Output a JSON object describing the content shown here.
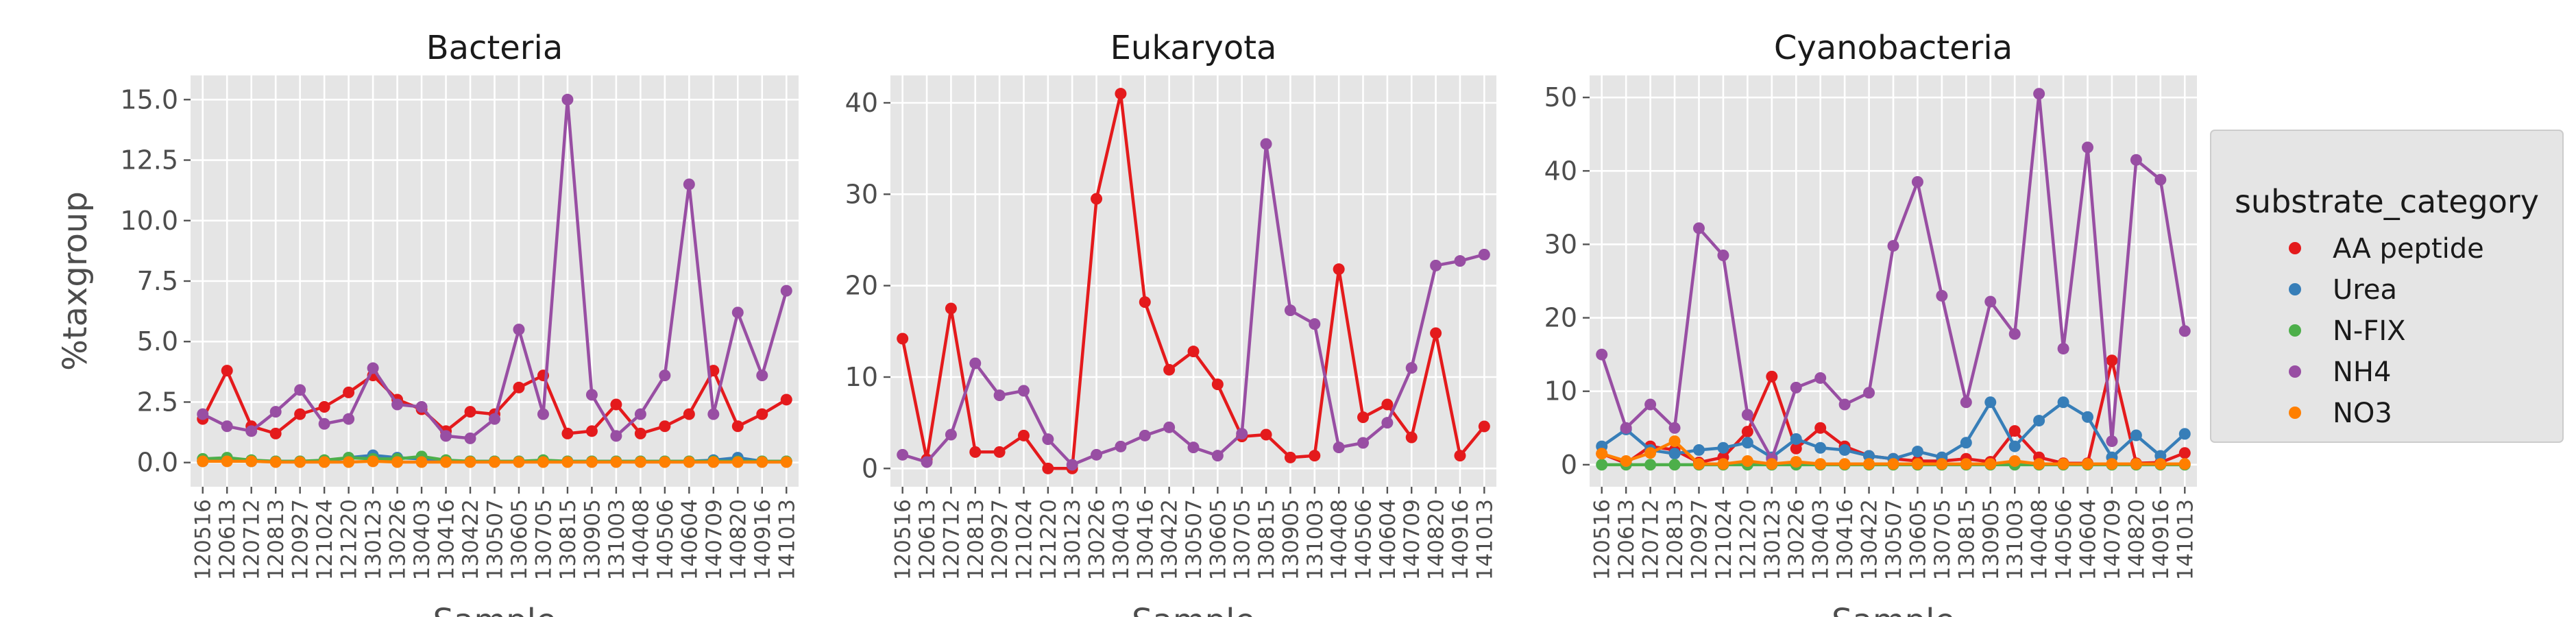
{
  "chart_data": {
    "type": "line",
    "legend": {
      "title": "substrate_category",
      "placement": "right",
      "entries": [
        {
          "name": "AA peptide",
          "color": "#e41a1c"
        },
        {
          "name": "Urea",
          "color": "#377eb8"
        },
        {
          "name": "N-FIX",
          "color": "#4daf4a"
        },
        {
          "name": "NH4",
          "color": "#984ea3"
        },
        {
          "name": "NO3",
          "color": "#ff7f00"
        }
      ]
    },
    "panels": [
      {
        "title": "Bacteria",
        "xlabel": "Sample",
        "ylabel": "%taxgroup",
        "ylim": [
          -1,
          16
        ],
        "yticks": [
          0.0,
          2.5,
          5.0,
          7.5,
          10.0,
          12.5,
          15.0
        ],
        "ytick_labels": [
          "0.0",
          "2.5",
          "5.0",
          "7.5",
          "10.0",
          "12.5",
          "15.0"
        ],
        "x": [
          "120516",
          "120613",
          "120712",
          "120813",
          "120927",
          "121024",
          "121220",
          "130123",
          "130226",
          "130403",
          "130416",
          "130422",
          "130507",
          "130605",
          "130705",
          "130815",
          "130905",
          "131003",
          "140408",
          "140506",
          "140604",
          "140709",
          "140820",
          "140916",
          "141013"
        ],
        "series": [
          {
            "name": "AA peptide",
            "color": "#e41a1c",
            "values": [
              1.8,
              3.8,
              1.5,
              1.2,
              2.0,
              2.3,
              2.9,
              3.6,
              2.6,
              2.2,
              1.3,
              2.1,
              2.0,
              3.1,
              3.6,
              1.2,
              1.3,
              2.4,
              1.2,
              1.5,
              2.0,
              3.8,
              1.5,
              2.0,
              2.6
            ]
          },
          {
            "name": "Urea",
            "color": "#377eb8",
            "values": [
              0.05,
              0.1,
              0.05,
              0.05,
              0.05,
              0.05,
              0.2,
              0.3,
              0.2,
              0.15,
              0.05,
              0.05,
              0.05,
              0.05,
              0.05,
              0.05,
              0.05,
              0.05,
              0.05,
              0.05,
              0.05,
              0.1,
              0.2,
              0.05,
              0.05
            ]
          },
          {
            "name": "N-FIX",
            "color": "#4daf4a",
            "values": [
              0.15,
              0.2,
              0.1,
              0.05,
              0.05,
              0.1,
              0.2,
              0.15,
              0.15,
              0.25,
              0.1,
              0.05,
              0.05,
              0.05,
              0.1,
              0.05,
              0.05,
              0.05,
              0.05,
              0.05,
              0.05,
              0.05,
              0.05,
              0.05,
              0.05
            ]
          },
          {
            "name": "NH4",
            "color": "#984ea3",
            "values": [
              2.0,
              1.5,
              1.3,
              2.1,
              3.0,
              1.6,
              1.8,
              3.9,
              2.4,
              2.3,
              1.1,
              1.0,
              1.8,
              5.5,
              2.0,
              15.0,
              2.8,
              1.1,
              2.0,
              3.6,
              11.5,
              2.0,
              6.2,
              3.6,
              7.1
            ]
          },
          {
            "name": "NO3",
            "color": "#ff7f00",
            "values": [
              0.05,
              0.05,
              0.05,
              0.02,
              0.02,
              0.02,
              0.02,
              0.05,
              0.02,
              0.02,
              0.02,
              0.02,
              0.02,
              0.02,
              0.02,
              0.02,
              0.02,
              0.02,
              0.02,
              0.02,
              0.02,
              0.02,
              0.02,
              0.02,
              0.02
            ]
          }
        ]
      },
      {
        "title": "Eukaryota",
        "xlabel": "Sample",
        "ylabel": "",
        "ylim": [
          -2,
          43
        ],
        "yticks": [
          0,
          10,
          20,
          30,
          40
        ],
        "ytick_labels": [
          "0",
          "10",
          "20",
          "30",
          "40"
        ],
        "x": [
          "120516",
          "120613",
          "120712",
          "120813",
          "120927",
          "121024",
          "121220",
          "130123",
          "130226",
          "130403",
          "130416",
          "130422",
          "130507",
          "130605",
          "130705",
          "130815",
          "130905",
          "131003",
          "140408",
          "140506",
          "140604",
          "140709",
          "140820",
          "140916",
          "141013"
        ],
        "series": [
          {
            "name": "AA peptide",
            "color": "#e41a1c",
            "values": [
              14.2,
              1.0,
              17.5,
              1.8,
              1.8,
              3.6,
              0.0,
              0.0,
              29.5,
              41.0,
              18.2,
              10.8,
              12.8,
              9.2,
              3.5,
              3.7,
              1.2,
              1.4,
              21.8,
              5.6,
              7.0,
              3.4,
              14.8,
              1.4,
              4.6
            ]
          },
          {
            "name": "NH4",
            "color": "#984ea3",
            "values": [
              1.5,
              0.7,
              3.7,
              11.5,
              8.0,
              8.5,
              3.2,
              0.4,
              1.5,
              2.4,
              3.6,
              4.5,
              2.3,
              1.4,
              3.8,
              35.5,
              17.3,
              15.8,
              2.3,
              2.8,
              5.0,
              11.0,
              22.2,
              22.7,
              23.4
            ]
          }
        ]
      },
      {
        "title": "Cyanobacteria",
        "xlabel": "Sample",
        "ylabel": "",
        "ylim": [
          -3,
          53
        ],
        "yticks": [
          0,
          10,
          20,
          30,
          40,
          50
        ],
        "ytick_labels": [
          "0",
          "10",
          "20",
          "30",
          "40",
          "50"
        ],
        "x": [
          "120516",
          "120613",
          "120712",
          "120813",
          "120927",
          "121024",
          "121220",
          "130123",
          "130226",
          "130403",
          "130416",
          "130422",
          "130507",
          "130605",
          "130705",
          "130815",
          "130905",
          "131003",
          "140408",
          "140506",
          "140604",
          "140709",
          "140820",
          "140916",
          "141013"
        ],
        "series": [
          {
            "name": "AA peptide",
            "color": "#e41a1c",
            "values": [
              1.5,
              0.2,
              2.5,
              2.0,
              0.3,
              1.0,
              4.5,
              12.0,
              2.2,
              5.0,
              2.5,
              1.2,
              0.8,
              0.5,
              0.5,
              0.8,
              0.4,
              4.6,
              1.0,
              0.2,
              0.2,
              14.2,
              0.2,
              0.3,
              1.6
            ]
          },
          {
            "name": "Urea",
            "color": "#377eb8",
            "values": [
              2.5,
              4.8,
              2.0,
              1.5,
              2.0,
              2.3,
              3.0,
              1.0,
              3.5,
              2.3,
              2.0,
              1.2,
              0.8,
              1.8,
              1.0,
              3.0,
              8.5,
              2.5,
              6.0,
              8.5,
              6.5,
              1.0,
              4.0,
              1.2,
              4.2
            ]
          },
          {
            "name": "N-FIX",
            "color": "#4daf4a",
            "values": [
              0.0,
              0.0,
              0.0,
              0.0,
              0.0,
              0.0,
              0.0,
              0.0,
              0.0,
              0.0,
              0.0,
              0.0,
              0.0,
              0.0,
              0.0,
              0.0,
              0.0,
              0.0,
              0.0,
              0.0,
              0.0,
              0.0,
              0.0,
              0.0,
              0.0
            ]
          },
          {
            "name": "NH4",
            "color": "#984ea3",
            "values": [
              15.0,
              5.0,
              8.2,
              5.0,
              32.2,
              28.5,
              6.8,
              0.8,
              10.5,
              11.8,
              8.2,
              9.8,
              29.8,
              38.5,
              23.0,
              8.5,
              22.2,
              17.8,
              50.5,
              15.8,
              43.2,
              3.2,
              41.5,
              38.8,
              18.2
            ]
          },
          {
            "name": "NO3",
            "color": "#ff7f00",
            "values": [
              1.5,
              0.5,
              1.6,
              3.2,
              0.1,
              0.1,
              0.5,
              0.1,
              0.4,
              0.1,
              0.1,
              0.1,
              0.1,
              0.1,
              0.1,
              0.1,
              0.1,
              0.5,
              0.1,
              0.1,
              0.1,
              0.1,
              0.1,
              0.1,
              0.1
            ]
          }
        ]
      }
    ]
  }
}
